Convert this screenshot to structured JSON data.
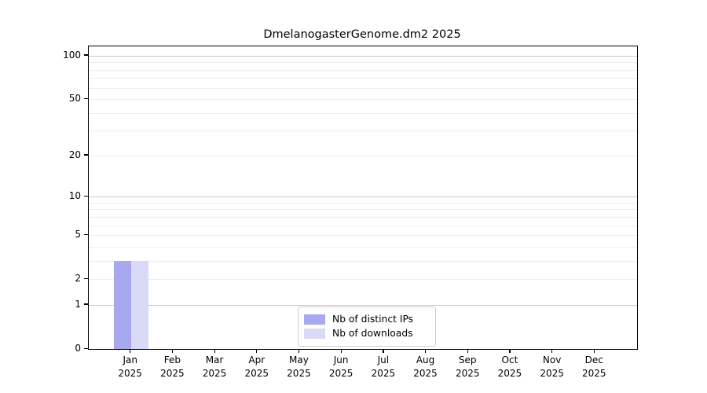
{
  "title": "DmelanogasterGenome.dm2 2025",
  "chart_data": {
    "type": "bar",
    "title": "DmelanogasterGenome.dm2 2025",
    "categories": [
      "Jan 2025",
      "Feb 2025",
      "Mar 2025",
      "Apr 2025",
      "May 2025",
      "Jun 2025",
      "Jul 2025",
      "Aug 2025",
      "Sep 2025",
      "Oct 2025",
      "Nov 2025",
      "Dec 2025"
    ],
    "x_tick_lines": [
      {
        "month": "Jan",
        "year": "2025"
      },
      {
        "month": "Feb",
        "year": "2025"
      },
      {
        "month": "Mar",
        "year": "2025"
      },
      {
        "month": "Apr",
        "year": "2025"
      },
      {
        "month": "May",
        "year": "2025"
      },
      {
        "month": "Jun",
        "year": "2025"
      },
      {
        "month": "Jul",
        "year": "2025"
      },
      {
        "month": "Aug",
        "year": "2025"
      },
      {
        "month": "Sep",
        "year": "2025"
      },
      {
        "month": "Oct",
        "year": "2025"
      },
      {
        "month": "Nov",
        "year": "2025"
      },
      {
        "month": "Dec",
        "year": "2025"
      }
    ],
    "series": [
      {
        "name": "Nb of distinct IPs",
        "color": "#a8a8f0",
        "values": [
          3,
          0,
          0,
          0,
          0,
          0,
          0,
          0,
          0,
          0,
          0,
          0
        ]
      },
      {
        "name": "Nb of downloads",
        "color": "#d9d9f8",
        "values": [
          3,
          0,
          0,
          0,
          0,
          0,
          0,
          0,
          0,
          0,
          0,
          0
        ]
      }
    ],
    "y_axis": {
      "scale": "log1p",
      "tick_values": [
        0,
        1,
        2,
        5,
        10,
        20,
        50,
        100
      ],
      "tick_labels": [
        "0",
        "1",
        "2",
        "5",
        "10",
        "20",
        "50",
        "100"
      ],
      "major_gridlines": [
        1,
        10,
        100
      ],
      "minor_gridlines": [
        2,
        3,
        4,
        5,
        6,
        7,
        8,
        9,
        20,
        30,
        40,
        50,
        60,
        70,
        80,
        90
      ],
      "range_max": 116
    },
    "legend": {
      "position": "lower center",
      "entries": [
        "Nb of distinct IPs",
        "Nb of downloads"
      ]
    },
    "grid": true,
    "colors": {
      "major_grid": "#c9c9c9",
      "minor_grid": "#ededed",
      "axis": "#000000",
      "background": "#ffffff"
    }
  }
}
